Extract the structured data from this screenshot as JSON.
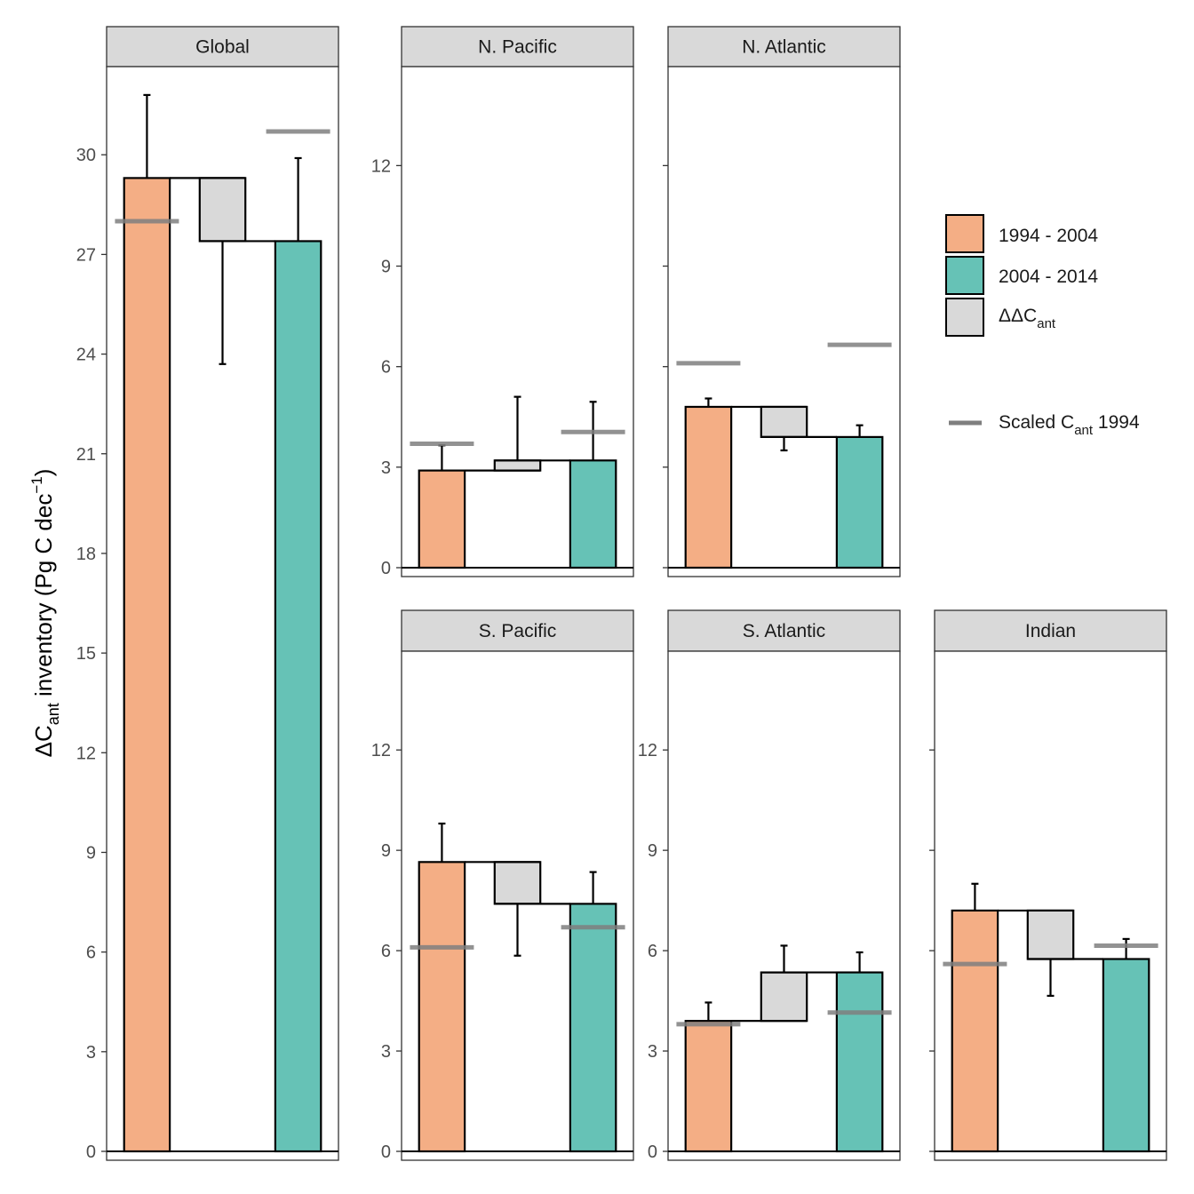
{
  "chart_data": {
    "type": "bar",
    "ylabel": {
      "main": "ΔC",
      "sub": "ant",
      "rest": " inventory ",
      "unit_main": "(Pg C dec",
      "unit_sup": "−1",
      "unit_end": ")"
    },
    "categories": [
      "1994 - 2004",
      "ΔΔCant",
      "2004 - 2014"
    ],
    "colors": {
      "period1": "#F4AE85",
      "period2": "#66C2B6",
      "delta": "#D9D9D9",
      "scaled_line": "#7F7F7F",
      "strip": "#D9D9D9"
    },
    "panels": [
      {
        "id": "global",
        "title": "Global",
        "ylim": [
          0,
          32.6
        ],
        "yticks": [
          "0",
          "3",
          "6",
          "9",
          "12",
          "15",
          "18",
          "21",
          "24",
          "27",
          "30"
        ],
        "values": {
          "p1": 29.3,
          "p2": 27.4
        },
        "errors": {
          "p1": 31.8,
          "p2": 29.9,
          "delta": 23.7
        },
        "scaled": {
          "p1": 28.0,
          "p2": 30.7
        }
      },
      {
        "id": "n-pacific",
        "title": "N. Pacific",
        "ylim": [
          0,
          14.9
        ],
        "yticks": [
          "0",
          "3",
          "6",
          "9",
          "12"
        ],
        "values": {
          "p1": 2.9,
          "p2": 3.2
        },
        "errors": {
          "p1": 3.65,
          "p2": 4.95,
          "delta": 5.1
        },
        "scaled": {
          "p1": 3.7,
          "p2": 4.05
        }
      },
      {
        "id": "n-atlantic",
        "title": "N. Atlantic",
        "ylim": [
          0,
          14.9
        ],
        "yticks": [
          "",
          "",
          "",
          "",
          ""
        ],
        "values": {
          "p1": 4.8,
          "p2": 3.9
        },
        "errors": {
          "p1": 5.05,
          "p2": 4.25,
          "delta": 3.5
        },
        "scaled": {
          "p1": 6.1,
          "p2": 6.65
        }
      },
      {
        "id": "s-pacific",
        "title": "S. Pacific",
        "ylim": [
          0,
          14.9
        ],
        "yticks": [
          "0",
          "3",
          "6",
          "9",
          "12"
        ],
        "values": {
          "p1": 8.65,
          "p2": 7.4
        },
        "errors": {
          "p1": 9.8,
          "p2": 8.35,
          "delta": 5.85
        },
        "scaled": {
          "p1": 6.1,
          "p2": 6.7
        }
      },
      {
        "id": "s-atlantic",
        "title": "S. Atlantic",
        "ylim": [
          0,
          14.9
        ],
        "yticks": [
          "0",
          "3",
          "6",
          "9",
          "12"
        ],
        "values": {
          "p1": 3.9,
          "p2": 5.35
        },
        "errors": {
          "p1": 4.45,
          "p2": 5.95,
          "delta": 6.15
        },
        "scaled": {
          "p1": 3.8,
          "p2": 4.15
        }
      },
      {
        "id": "indian",
        "title": "Indian",
        "ylim": [
          0,
          14.9
        ],
        "yticks": [
          "",
          "",
          "",
          "",
          ""
        ],
        "values": {
          "p1": 7.2,
          "p2": 5.75
        },
        "errors": {
          "p1": 8.0,
          "p2": 6.35,
          "delta": 4.65
        },
        "scaled": {
          "p1": 5.6,
          "p2": 6.15
        }
      }
    ],
    "legend": {
      "position": "right",
      "items": [
        {
          "key": "p1",
          "label": "1994 - 2004"
        },
        {
          "key": "p2",
          "label": "2004 - 2014"
        },
        {
          "key": "delta",
          "label_main": "ΔΔC",
          "label_sub": "ant"
        },
        {
          "key": "scaled",
          "label_main": "Scaled C",
          "label_sub": "ant",
          "label_end": " 1994"
        }
      ]
    }
  }
}
